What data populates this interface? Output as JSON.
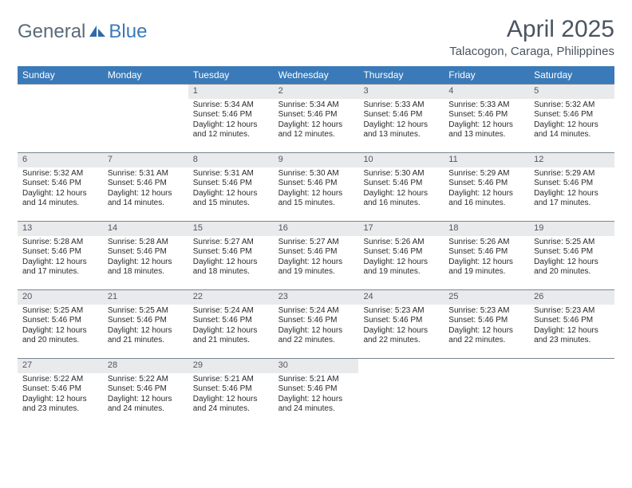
{
  "brand": {
    "word1": "General",
    "word2": "Blue",
    "color_general": "#5a6b78",
    "color_blue": "#3a7ab8"
  },
  "header": {
    "month_title": "April 2025",
    "location": "Talacogon, Caraga, Philippines"
  },
  "colors": {
    "header_bg": "#3a7ab8",
    "header_text": "#ffffff",
    "daynum_bg": "#e8eaec",
    "row_border": "#7a8590",
    "body_text": "#2a2a2a",
    "title_text": "#4a5560"
  },
  "weekdays": [
    "Sunday",
    "Monday",
    "Tuesday",
    "Wednesday",
    "Thursday",
    "Friday",
    "Saturday"
  ],
  "weeks": [
    [
      {
        "day": "",
        "sunrise": "",
        "sunset": "",
        "daylight": ""
      },
      {
        "day": "",
        "sunrise": "",
        "sunset": "",
        "daylight": ""
      },
      {
        "day": "1",
        "sunrise": "Sunrise: 5:34 AM",
        "sunset": "Sunset: 5:46 PM",
        "daylight": "Daylight: 12 hours and 12 minutes."
      },
      {
        "day": "2",
        "sunrise": "Sunrise: 5:34 AM",
        "sunset": "Sunset: 5:46 PM",
        "daylight": "Daylight: 12 hours and 12 minutes."
      },
      {
        "day": "3",
        "sunrise": "Sunrise: 5:33 AM",
        "sunset": "Sunset: 5:46 PM",
        "daylight": "Daylight: 12 hours and 13 minutes."
      },
      {
        "day": "4",
        "sunrise": "Sunrise: 5:33 AM",
        "sunset": "Sunset: 5:46 PM",
        "daylight": "Daylight: 12 hours and 13 minutes."
      },
      {
        "day": "5",
        "sunrise": "Sunrise: 5:32 AM",
        "sunset": "Sunset: 5:46 PM",
        "daylight": "Daylight: 12 hours and 14 minutes."
      }
    ],
    [
      {
        "day": "6",
        "sunrise": "Sunrise: 5:32 AM",
        "sunset": "Sunset: 5:46 PM",
        "daylight": "Daylight: 12 hours and 14 minutes."
      },
      {
        "day": "7",
        "sunrise": "Sunrise: 5:31 AM",
        "sunset": "Sunset: 5:46 PM",
        "daylight": "Daylight: 12 hours and 14 minutes."
      },
      {
        "day": "8",
        "sunrise": "Sunrise: 5:31 AM",
        "sunset": "Sunset: 5:46 PM",
        "daylight": "Daylight: 12 hours and 15 minutes."
      },
      {
        "day": "9",
        "sunrise": "Sunrise: 5:30 AM",
        "sunset": "Sunset: 5:46 PM",
        "daylight": "Daylight: 12 hours and 15 minutes."
      },
      {
        "day": "10",
        "sunrise": "Sunrise: 5:30 AM",
        "sunset": "Sunset: 5:46 PM",
        "daylight": "Daylight: 12 hours and 16 minutes."
      },
      {
        "day": "11",
        "sunrise": "Sunrise: 5:29 AM",
        "sunset": "Sunset: 5:46 PM",
        "daylight": "Daylight: 12 hours and 16 minutes."
      },
      {
        "day": "12",
        "sunrise": "Sunrise: 5:29 AM",
        "sunset": "Sunset: 5:46 PM",
        "daylight": "Daylight: 12 hours and 17 minutes."
      }
    ],
    [
      {
        "day": "13",
        "sunrise": "Sunrise: 5:28 AM",
        "sunset": "Sunset: 5:46 PM",
        "daylight": "Daylight: 12 hours and 17 minutes."
      },
      {
        "day": "14",
        "sunrise": "Sunrise: 5:28 AM",
        "sunset": "Sunset: 5:46 PM",
        "daylight": "Daylight: 12 hours and 18 minutes."
      },
      {
        "day": "15",
        "sunrise": "Sunrise: 5:27 AM",
        "sunset": "Sunset: 5:46 PM",
        "daylight": "Daylight: 12 hours and 18 minutes."
      },
      {
        "day": "16",
        "sunrise": "Sunrise: 5:27 AM",
        "sunset": "Sunset: 5:46 PM",
        "daylight": "Daylight: 12 hours and 19 minutes."
      },
      {
        "day": "17",
        "sunrise": "Sunrise: 5:26 AM",
        "sunset": "Sunset: 5:46 PM",
        "daylight": "Daylight: 12 hours and 19 minutes."
      },
      {
        "day": "18",
        "sunrise": "Sunrise: 5:26 AM",
        "sunset": "Sunset: 5:46 PM",
        "daylight": "Daylight: 12 hours and 19 minutes."
      },
      {
        "day": "19",
        "sunrise": "Sunrise: 5:25 AM",
        "sunset": "Sunset: 5:46 PM",
        "daylight": "Daylight: 12 hours and 20 minutes."
      }
    ],
    [
      {
        "day": "20",
        "sunrise": "Sunrise: 5:25 AM",
        "sunset": "Sunset: 5:46 PM",
        "daylight": "Daylight: 12 hours and 20 minutes."
      },
      {
        "day": "21",
        "sunrise": "Sunrise: 5:25 AM",
        "sunset": "Sunset: 5:46 PM",
        "daylight": "Daylight: 12 hours and 21 minutes."
      },
      {
        "day": "22",
        "sunrise": "Sunrise: 5:24 AM",
        "sunset": "Sunset: 5:46 PM",
        "daylight": "Daylight: 12 hours and 21 minutes."
      },
      {
        "day": "23",
        "sunrise": "Sunrise: 5:24 AM",
        "sunset": "Sunset: 5:46 PM",
        "daylight": "Daylight: 12 hours and 22 minutes."
      },
      {
        "day": "24",
        "sunrise": "Sunrise: 5:23 AM",
        "sunset": "Sunset: 5:46 PM",
        "daylight": "Daylight: 12 hours and 22 minutes."
      },
      {
        "day": "25",
        "sunrise": "Sunrise: 5:23 AM",
        "sunset": "Sunset: 5:46 PM",
        "daylight": "Daylight: 12 hours and 22 minutes."
      },
      {
        "day": "26",
        "sunrise": "Sunrise: 5:23 AM",
        "sunset": "Sunset: 5:46 PM",
        "daylight": "Daylight: 12 hours and 23 minutes."
      }
    ],
    [
      {
        "day": "27",
        "sunrise": "Sunrise: 5:22 AM",
        "sunset": "Sunset: 5:46 PM",
        "daylight": "Daylight: 12 hours and 23 minutes."
      },
      {
        "day": "28",
        "sunrise": "Sunrise: 5:22 AM",
        "sunset": "Sunset: 5:46 PM",
        "daylight": "Daylight: 12 hours and 24 minutes."
      },
      {
        "day": "29",
        "sunrise": "Sunrise: 5:21 AM",
        "sunset": "Sunset: 5:46 PM",
        "daylight": "Daylight: 12 hours and 24 minutes."
      },
      {
        "day": "30",
        "sunrise": "Sunrise: 5:21 AM",
        "sunset": "Sunset: 5:46 PM",
        "daylight": "Daylight: 12 hours and 24 minutes."
      },
      {
        "day": "",
        "sunrise": "",
        "sunset": "",
        "daylight": ""
      },
      {
        "day": "",
        "sunrise": "",
        "sunset": "",
        "daylight": ""
      },
      {
        "day": "",
        "sunrise": "",
        "sunset": "",
        "daylight": ""
      }
    ]
  ]
}
